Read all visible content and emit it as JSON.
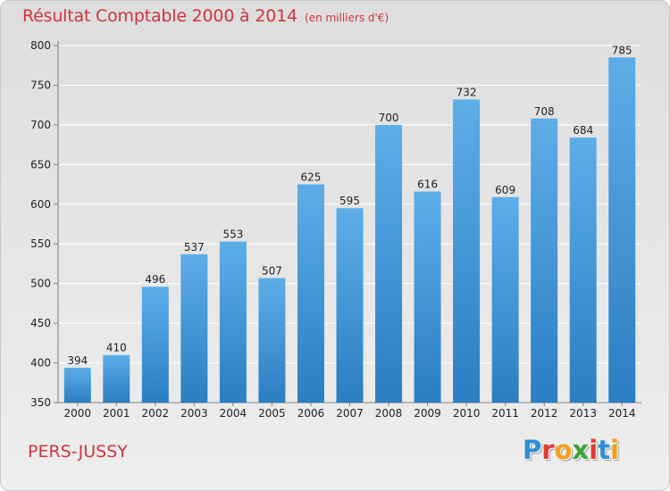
{
  "header": {
    "title": "Résultat Comptable 2000 à 2014",
    "subtitle": "(en milliers d'€)"
  },
  "footer": {
    "city": "PERS-JUSSY",
    "logo_text": "Proxiti",
    "logo_colors": [
      "#2d8fd6",
      "#e23a2e",
      "#f2a21a",
      "#3ea33a",
      "#e23a2e",
      "#2d8fd6",
      "#f2a21a"
    ]
  },
  "colors": {
    "title": "#d1343c",
    "bar_light": "#5dade8",
    "bar_dark": "#2b7ec2",
    "grid": "#ffffff",
    "axis": "#7f7f7f",
    "text": "#222222"
  },
  "chart_data": {
    "type": "bar",
    "categories": [
      "2000",
      "2001",
      "2002",
      "2003",
      "2004",
      "2005",
      "2006",
      "2007",
      "2008",
      "2009",
      "2010",
      "2011",
      "2012",
      "2013",
      "2014"
    ],
    "values": [
      394,
      410,
      496,
      537,
      553,
      507,
      625,
      595,
      700,
      616,
      732,
      609,
      708,
      684,
      785
    ],
    "ylim": [
      350,
      800
    ],
    "yticks": [
      350,
      400,
      450,
      500,
      550,
      600,
      650,
      700,
      750,
      800
    ],
    "grid": true,
    "title": "Résultat Comptable 2000 à 2014",
    "xlabel": "",
    "ylabel": ""
  }
}
